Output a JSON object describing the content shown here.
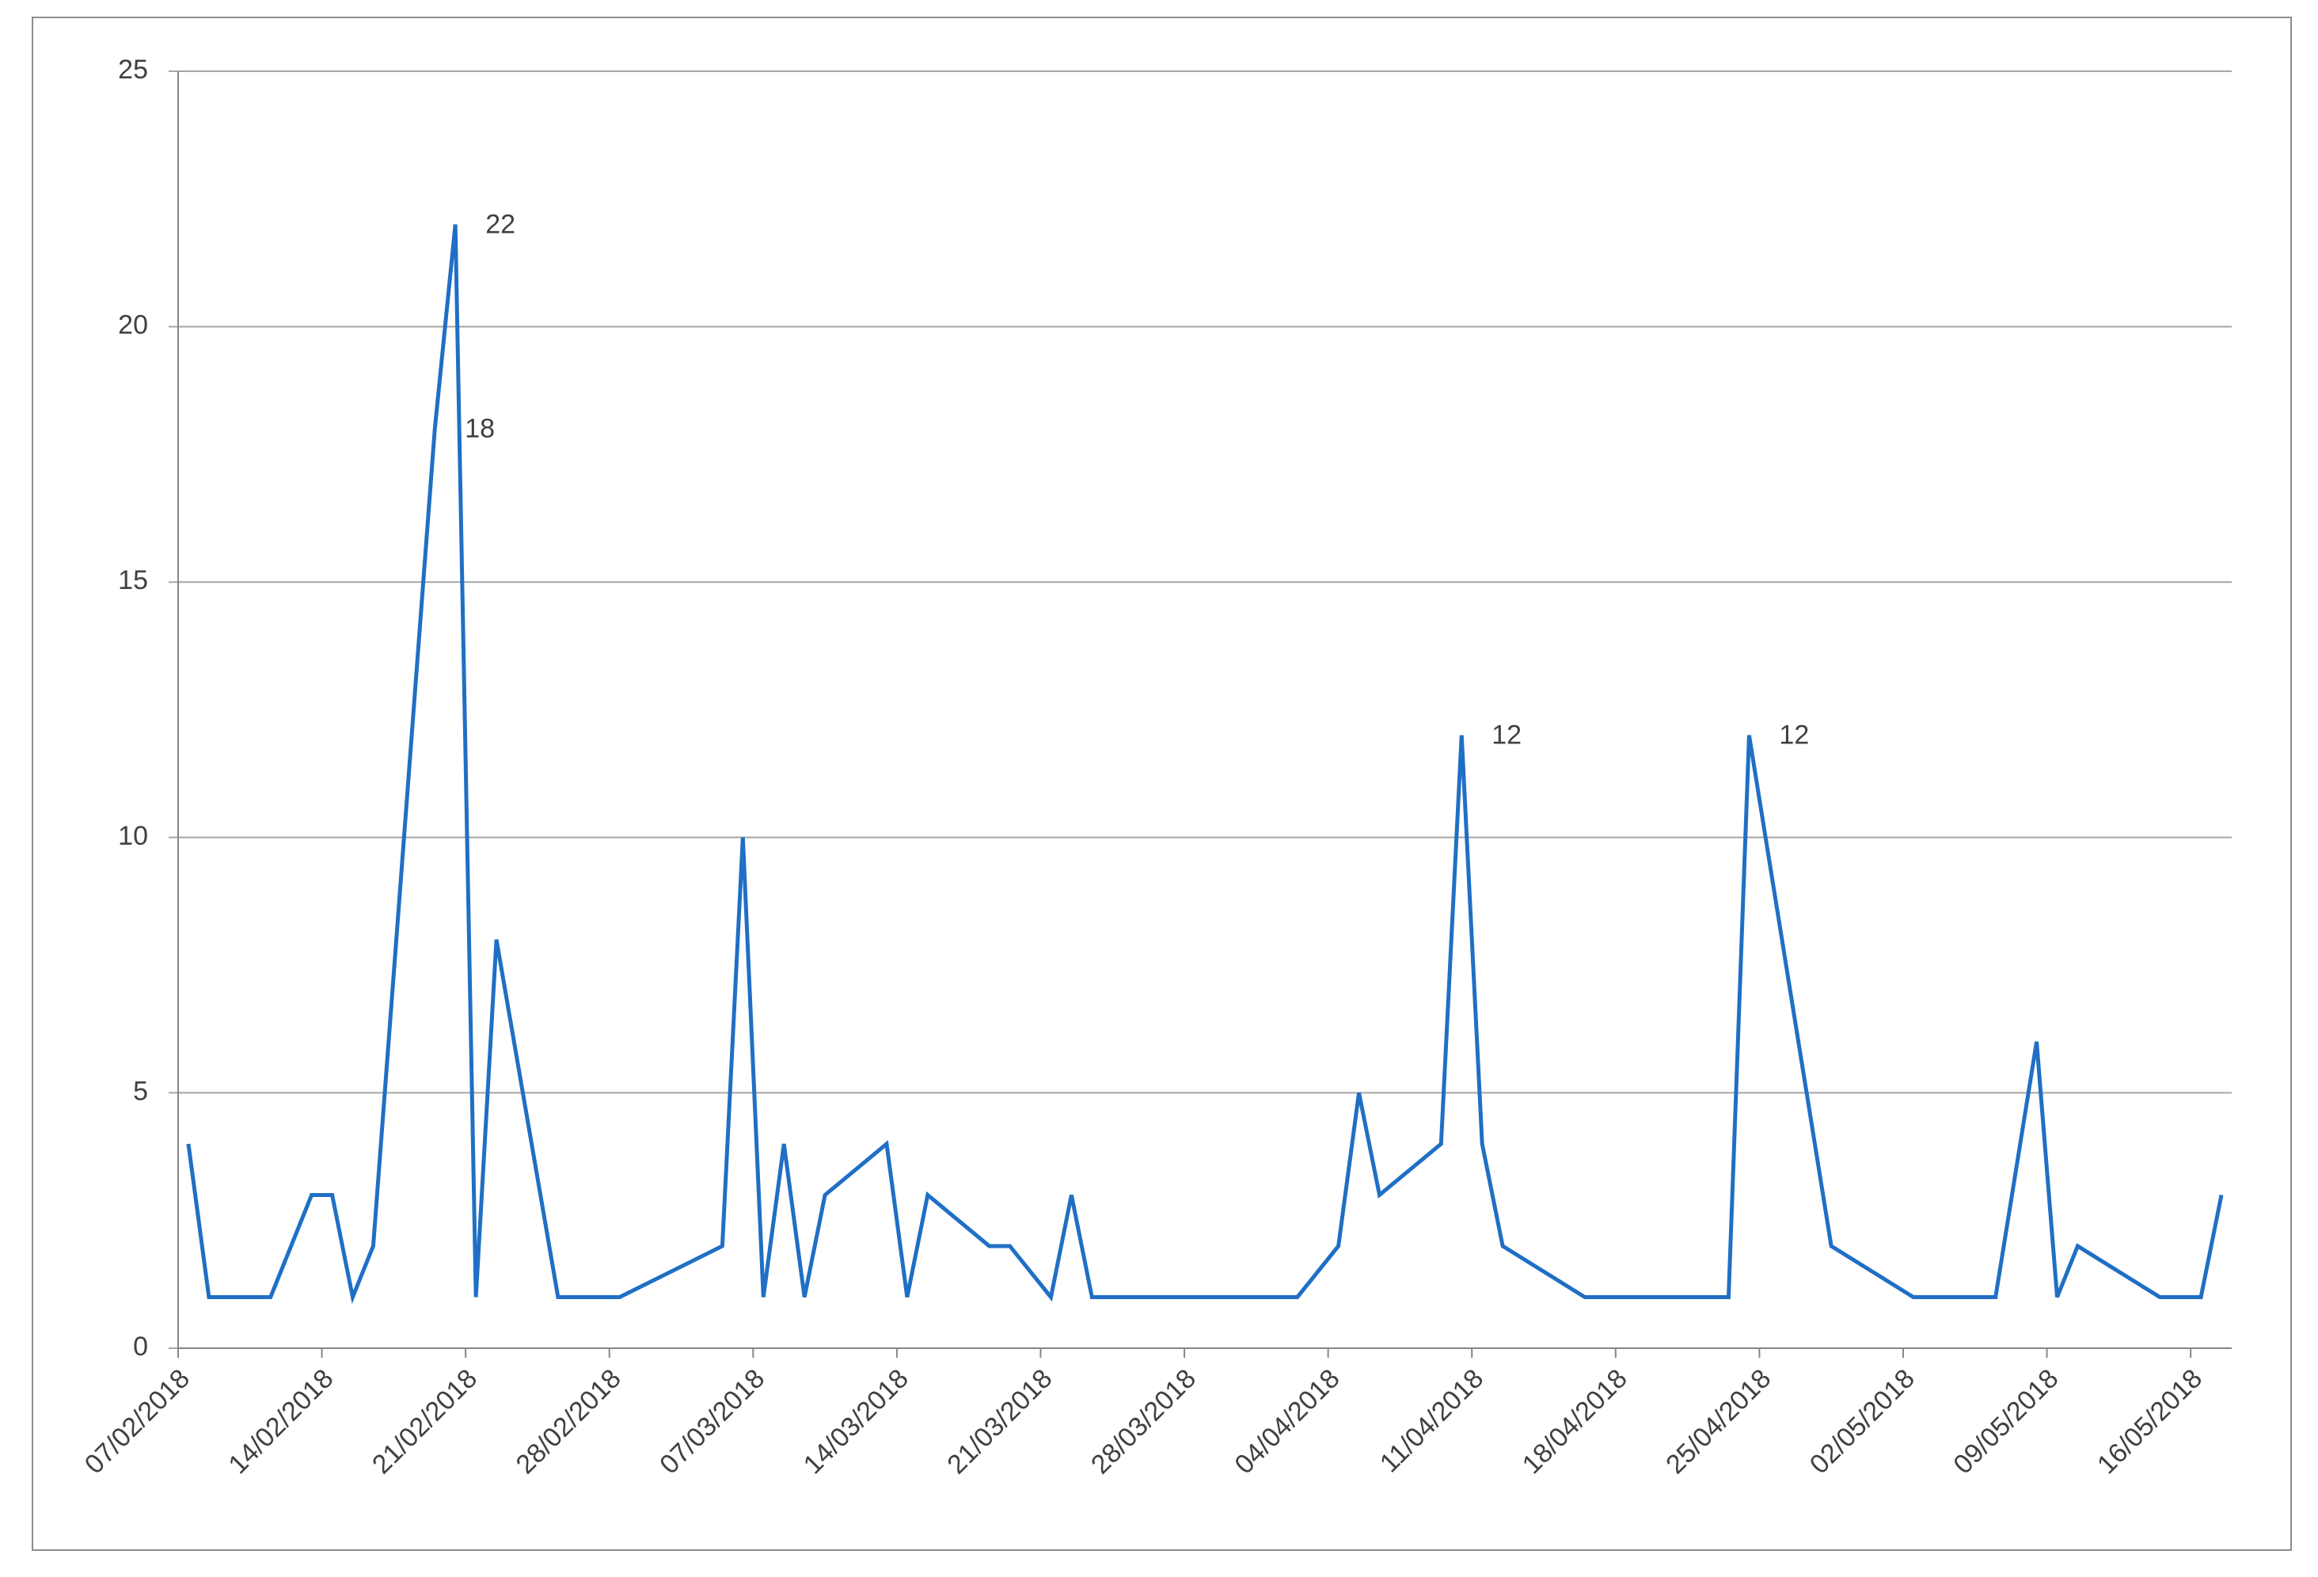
{
  "chart_data": {
    "type": "line",
    "x": [
      "07/02/2018",
      "08/02/2018",
      "11/02/2018",
      "13/02/2018",
      "14/02/2018",
      "15/02/2018",
      "16/02/2018",
      "19/02/2018",
      "20/02/2018",
      "21/02/2018",
      "22/02/2018",
      "25/02/2018",
      "28/02/2018",
      "05/03/2018",
      "06/03/2018",
      "07/03/2018",
      "08/03/2018",
      "09/03/2018",
      "10/03/2018",
      "13/03/2018",
      "14/03/2018",
      "15/03/2018",
      "18/03/2018",
      "19/03/2018",
      "21/03/2018",
      "22/03/2018",
      "23/03/2018",
      "02/04/2018",
      "04/04/2018",
      "05/04/2018",
      "06/04/2018",
      "09/04/2018",
      "10/04/2018",
      "11/04/2018",
      "12/04/2018",
      "16/04/2018",
      "23/04/2018",
      "24/04/2018",
      "28/04/2018",
      "02/05/2018",
      "06/05/2018",
      "08/05/2018",
      "09/05/2018",
      "10/05/2018",
      "14/05/2018",
      "16/05/2018",
      "17/05/2018"
    ],
    "series": [
      {
        "color": "#1f6fc5",
        "values": [
          4,
          1,
          1,
          3,
          3,
          1,
          2,
          18,
          22,
          1,
          8,
          1,
          1,
          2,
          10,
          1,
          4,
          1,
          3,
          4,
          1,
          3,
          2,
          2,
          1,
          3,
          1,
          1,
          2,
          5,
          3,
          4,
          12,
          4,
          2,
          1,
          1,
          12,
          2,
          1,
          1,
          6,
          1,
          2,
          1,
          1,
          3
        ],
        "value_labels": [
          null,
          null,
          null,
          null,
          null,
          null,
          null,
          "18",
          "22",
          null,
          null,
          null,
          null,
          null,
          null,
          null,
          null,
          null,
          null,
          null,
          null,
          null,
          null,
          null,
          null,
          null,
          null,
          null,
          null,
          null,
          null,
          null,
          "12",
          null,
          null,
          null,
          null,
          "12",
          null,
          null,
          null,
          null,
          null,
          null,
          null,
          null,
          null
        ]
      }
    ],
    "xlim": [
      "07/02/2018",
      "18/05/2018"
    ],
    "xticks": [
      "07/02/2018",
      "14/02/2018",
      "21/02/2018",
      "28/02/2018",
      "07/03/2018",
      "14/03/2018",
      "21/03/2018",
      "28/03/2018",
      "04/04/2018",
      "11/04/2018",
      "18/04/2018",
      "25/04/2018",
      "02/05/2018",
      "09/05/2018",
      "16/05/2018"
    ],
    "ylim": [
      0,
      25
    ],
    "yticks": [
      0,
      5,
      10,
      15,
      20,
      25
    ],
    "grid": true
  }
}
